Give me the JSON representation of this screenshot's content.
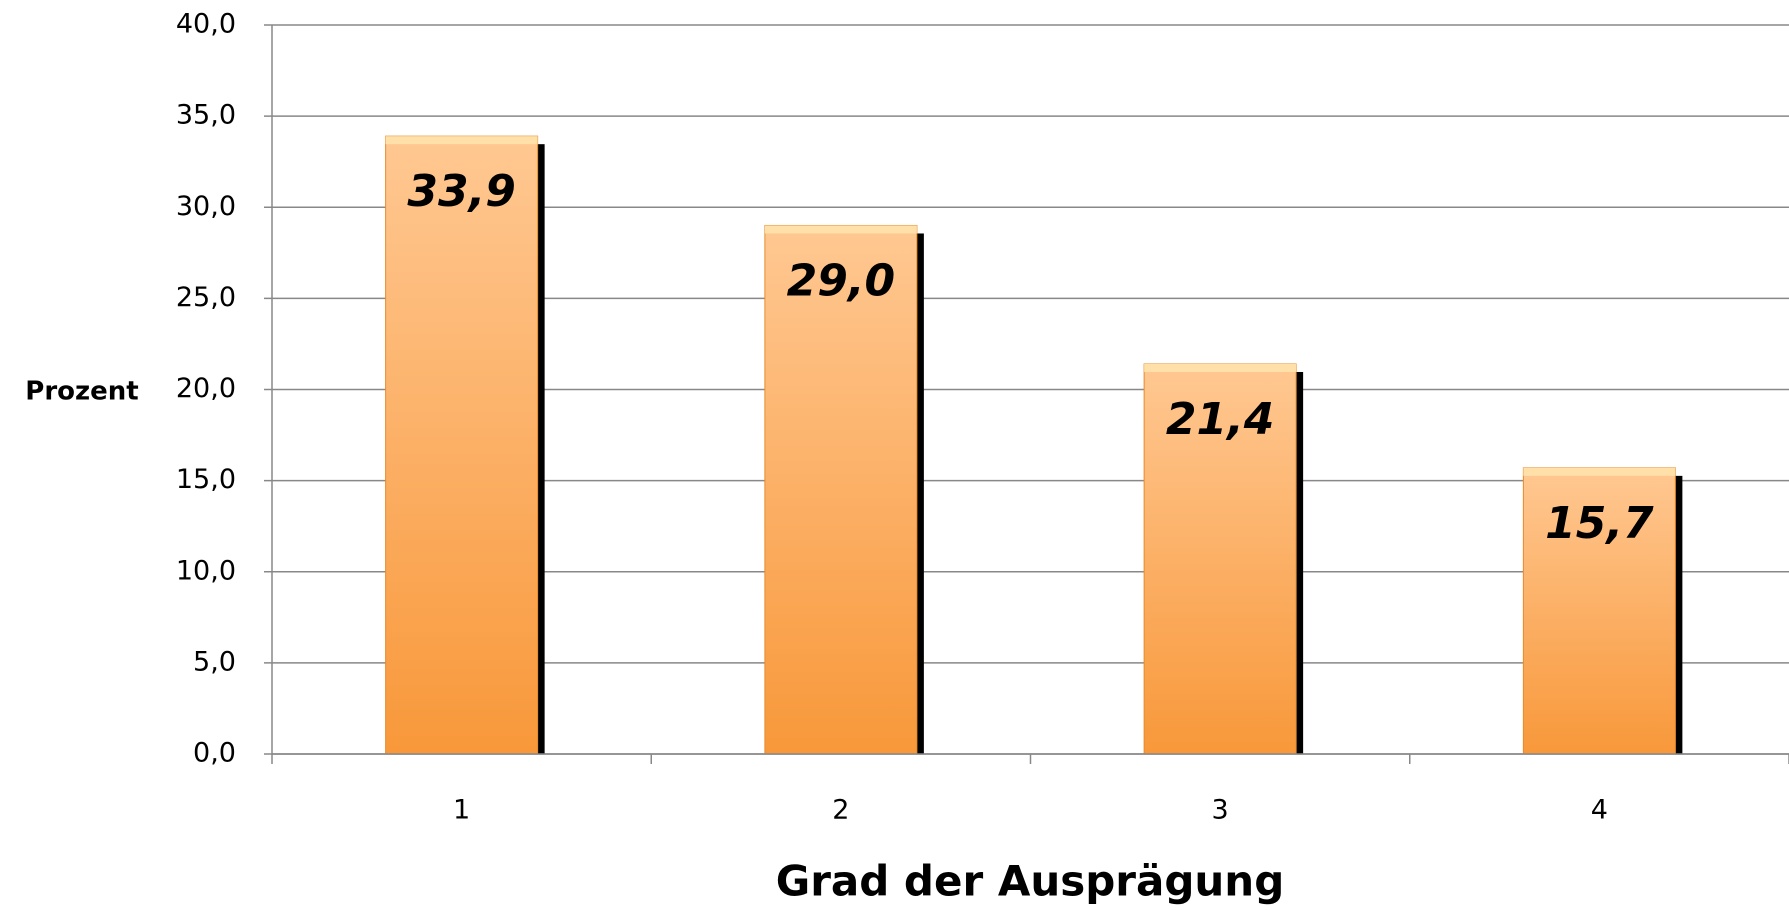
{
  "chart_data": {
    "type": "bar",
    "categories": [
      "1",
      "2",
      "3",
      "4"
    ],
    "values": [
      33.9,
      29.0,
      21.4,
      15.7
    ],
    "value_labels": [
      "33,9",
      "29,0",
      "21,4",
      "15,7"
    ],
    "color": "#f89c40",
    "ylabel": "Prozent",
    "xlabel": "Grad der Ausprägung",
    "ylim": [
      0,
      40
    ],
    "yticks": [
      {
        "value": 0,
        "label": "0,0"
      },
      {
        "value": 5,
        "label": "5,0"
      },
      {
        "value": 10,
        "label": "10,0"
      },
      {
        "value": 15,
        "label": "15,0"
      },
      {
        "value": 20,
        "label": "20,0"
      },
      {
        "value": 25,
        "label": "25,0"
      },
      {
        "value": 30,
        "label": "30,0"
      },
      {
        "value": 35,
        "label": "35,0"
      },
      {
        "value": 40,
        "label": "40,0"
      }
    ],
    "grid": true
  }
}
